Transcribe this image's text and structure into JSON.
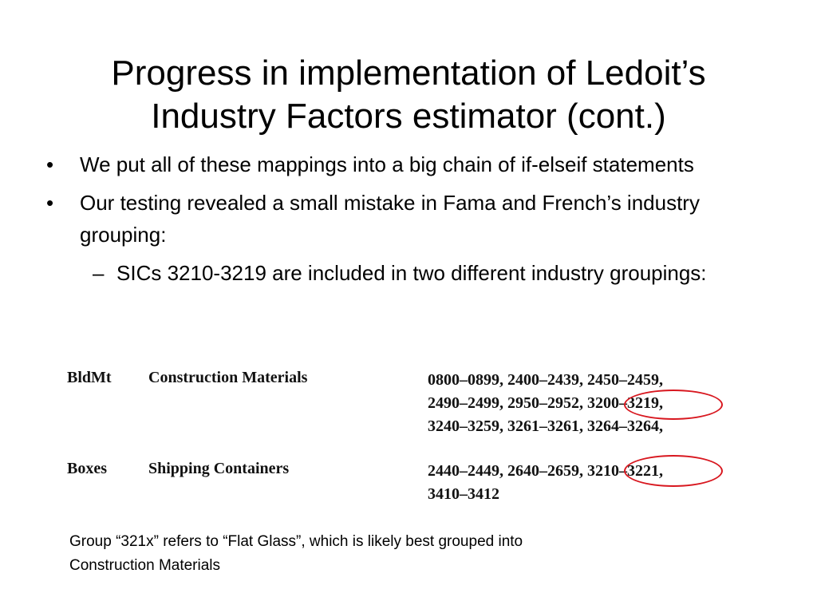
{
  "slide": {
    "title_line1": "Progress in implementation of Ledoit’s",
    "title_line2": "Industry Factors estimator (cont.)",
    "bullets": [
      {
        "marker": "•",
        "text": "We put all of these mappings into a big chain of if-elseif statements"
      },
      {
        "marker": "•",
        "text": "Our testing revealed a small mistake in Fama and French’s industry grouping:"
      },
      {
        "marker": "–",
        "text": "SICs 3210-3219 are included in two different industry groupings:"
      }
    ],
    "scan_rows": [
      {
        "code": "BldMt",
        "name": "Construction Materials",
        "ranges_line1": "0800–0899, 2400–2439, 2450–2459,",
        "ranges_line2": "2490–2499, 2950–2952, 3200–3219,",
        "ranges_line3": "3240–3259, 3261–3261, 3264–3264,"
      },
      {
        "code": "Boxes",
        "name": "Shipping Containers",
        "ranges_line1": "2440–2449, 2640–2659, 3210–3221,",
        "ranges_line2": "3410–3412"
      }
    ],
    "highlight_color": "#d8171f",
    "caption_line1": "Group “321x” refers to “Flat Glass”, which is likely best grouped into",
    "caption_line2": "Construction Materials"
  }
}
